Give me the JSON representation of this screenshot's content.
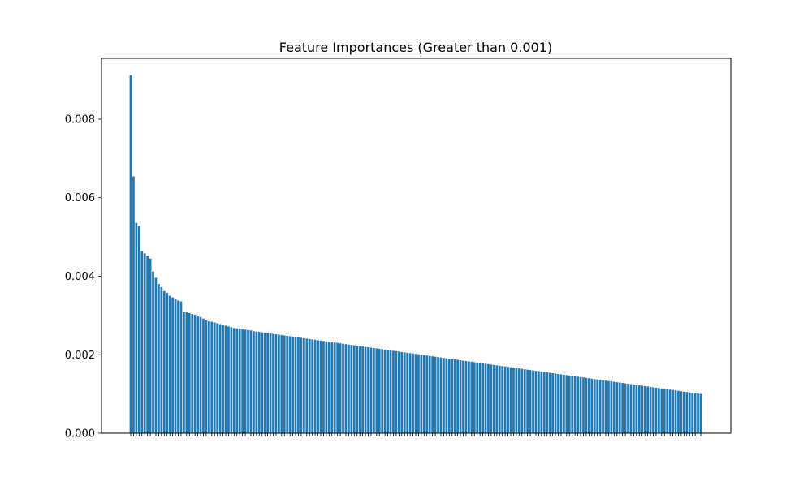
{
  "chart_data": {
    "type": "bar",
    "title": "Feature Importances (Greater than 0.001)",
    "xlabel": "",
    "ylabel": "",
    "ylim": [
      0,
      0.00955
    ],
    "yticks": [
      "0.000",
      "0.002",
      "0.004",
      "0.006",
      "0.008"
    ],
    "bar_color": "#1f77b4",
    "grid": false,
    "legend": "none",
    "values": [
      0.00912,
      0.00654,
      0.00536,
      0.00528,
      0.00464,
      0.00458,
      0.00452,
      0.00445,
      0.00412,
      0.00396,
      0.0038,
      0.00372,
      0.00362,
      0.00358,
      0.0035,
      0.00346,
      0.00342,
      0.00338,
      0.00336,
      0.0031,
      0.00308,
      0.00306,
      0.00304,
      0.00302,
      0.00298,
      0.00296,
      0.00292,
      0.00288,
      0.00285,
      0.00284,
      0.00282,
      0.0028,
      0.00278,
      0.00276,
      0.00274,
      0.00272,
      0.0027,
      0.00268,
      0.00267,
      0.00266,
      0.00265,
      0.00264,
      0.00263,
      0.00262,
      0.0026,
      0.00259,
      0.00258,
      0.00257,
      0.00256,
      0.00255,
      0.00254,
      0.00253,
      0.00252,
      0.00251,
      0.0025,
      0.00249,
      0.00248,
      0.00247,
      0.00246,
      0.00245,
      0.00244,
      0.00243,
      0.00242,
      0.00241,
      0.0024,
      0.00239,
      0.00238,
      0.00237,
      0.00236,
      0.00235,
      0.00234,
      0.00233,
      0.00232,
      0.00231,
      0.0023,
      0.00229,
      0.00228,
      0.00227,
      0.00226,
      0.00225,
      0.00224,
      0.00223,
      0.00222,
      0.00221,
      0.0022,
      0.00219,
      0.00218,
      0.00217,
      0.00216,
      0.00215,
      0.00214,
      0.00213,
      0.00212,
      0.00211,
      0.0021,
      0.00209,
      0.00208,
      0.00207,
      0.00206,
      0.00205,
      0.00204,
      0.00203,
      0.00202,
      0.00201,
      0.002,
      0.00199,
      0.00198,
      0.00197,
      0.00196,
      0.00195,
      0.00194,
      0.00193,
      0.00192,
      0.00191,
      0.0019,
      0.00189,
      0.00188,
      0.00187,
      0.00186,
      0.00185,
      0.00184,
      0.00183,
      0.00182,
      0.00181,
      0.0018,
      0.00179,
      0.00178,
      0.00177,
      0.00176,
      0.00175,
      0.00174,
      0.00173,
      0.00172,
      0.00171,
      0.0017,
      0.00169,
      0.00168,
      0.00167,
      0.00166,
      0.00165,
      0.00164,
      0.00163,
      0.00162,
      0.00161,
      0.0016,
      0.00159,
      0.00158,
      0.00157,
      0.00156,
      0.00155,
      0.00154,
      0.00153,
      0.00152,
      0.00151,
      0.0015,
      0.00149,
      0.00148,
      0.00147,
      0.00146,
      0.00145,
      0.00144,
      0.00143,
      0.00142,
      0.00141,
      0.0014,
      0.00139,
      0.00138,
      0.00137,
      0.00136,
      0.00135,
      0.00134,
      0.00133,
      0.00132,
      0.00131,
      0.0013,
      0.00129,
      0.00128,
      0.00127,
      0.00126,
      0.00125,
      0.00124,
      0.00123,
      0.00122,
      0.00121,
      0.0012,
      0.00119,
      0.00118,
      0.00117,
      0.00116,
      0.00115,
      0.00114,
      0.00113,
      0.00112,
      0.00111,
      0.0011,
      0.00109,
      0.00108,
      0.00107,
      0.00106,
      0.00105,
      0.00104,
      0.00103,
      0.00102,
      0.00101,
      0.001
    ]
  }
}
